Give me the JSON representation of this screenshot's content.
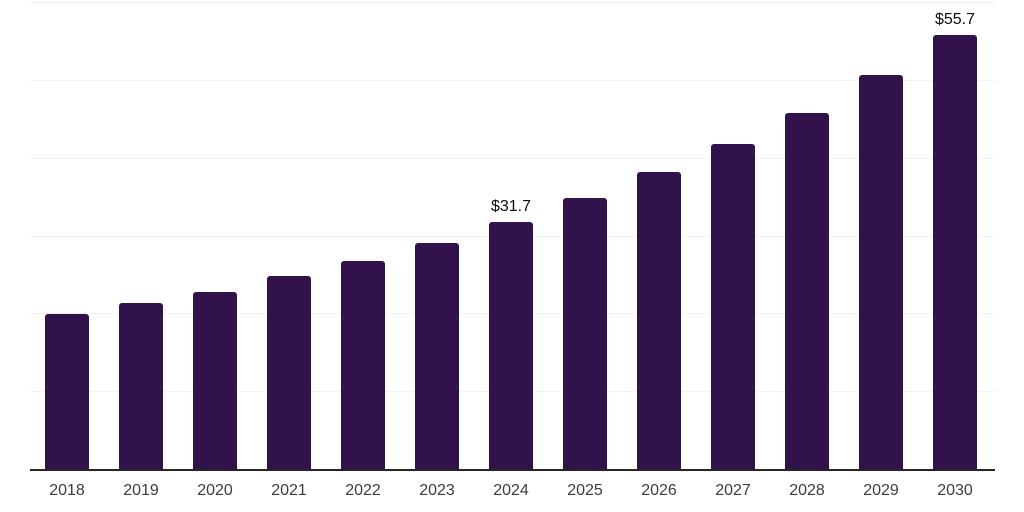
{
  "chart_data": {
    "type": "bar",
    "title": "",
    "xlabel": "",
    "ylabel": "",
    "categories": [
      "2018",
      "2019",
      "2020",
      "2021",
      "2022",
      "2023",
      "2024",
      "2025",
      "2026",
      "2027",
      "2028",
      "2029",
      "2030"
    ],
    "values": [
      19.9,
      21.3,
      22.8,
      24.8,
      26.7,
      29.1,
      31.7,
      34.8,
      38.1,
      41.7,
      45.7,
      50.6,
      55.7
    ],
    "point_labels": [
      "",
      "",
      "",
      "",
      "",
      "",
      "$31.7",
      "",
      "",
      "",
      "",
      "",
      "$55.7"
    ],
    "ylim": [
      0,
      60
    ],
    "grid": true,
    "gridline_interval": 10,
    "legend": "none",
    "colors": {
      "bar": "#32124a",
      "gridline": "#f1f1f1",
      "axis_line": "#262626",
      "tick_label": "#3c3c3c",
      "data_label": "#0d0d0d",
      "background": "#ffffff"
    }
  }
}
